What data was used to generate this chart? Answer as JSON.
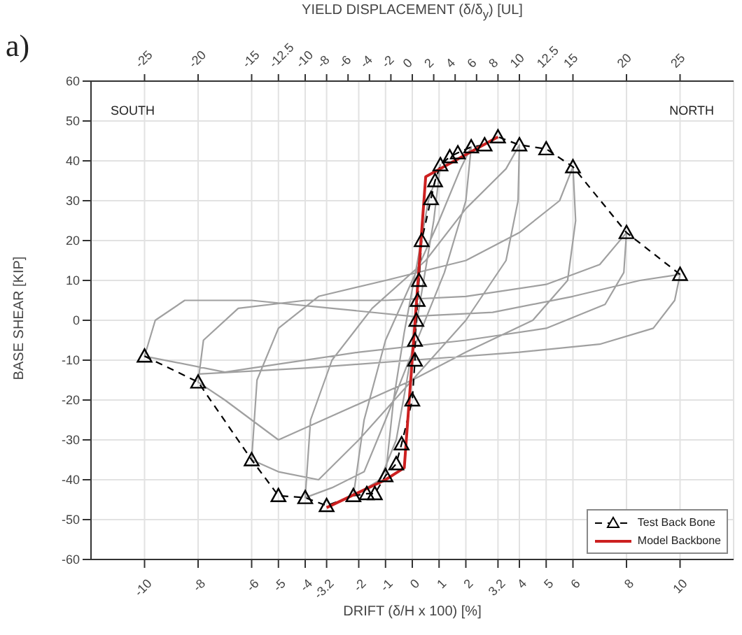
{
  "chart_data": {
    "type": "line",
    "annotations": [
      "a)",
      "SOUTH",
      "NORTH"
    ],
    "xlabel": "DRIFT (δ/H x 100) [%]",
    "x2label": "YIELD DISPLACEMENT (δ/δ$_{y}$) [UL]",
    "ylabel": "BASE SHEAR [KIP]",
    "xlim": [
      -12,
      12
    ],
    "xticks": [
      -10,
      -8,
      -6,
      -5,
      -4,
      -3.2,
      -2,
      -1,
      0,
      1,
      2,
      3.2,
      4,
      5,
      6,
      8,
      10
    ],
    "x2lim": [
      -30,
      30
    ],
    "x2ticks": [
      -25,
      -20,
      -15,
      -12.5,
      -10,
      -8,
      -6,
      -4,
      -2,
      0,
      2,
      4,
      6,
      8,
      10,
      12.5,
      15,
      20,
      25
    ],
    "ylim": [
      -60,
      60
    ],
    "yticks": [
      -60,
      -50,
      -40,
      -30,
      -20,
      -10,
      0,
      10,
      20,
      30,
      40,
      50,
      60
    ],
    "grid": true,
    "legend": "bottom right",
    "series": [
      {
        "color": "#a0a0a0",
        "marker": "none",
        "line_style": "solid",
        "x": [
          -1,
          -0.7,
          -0.3,
          0.2,
          0.6,
          1.05,
          0.8,
          0.3,
          -0.2,
          -0.6,
          -1.2,
          -2.2,
          -1.8,
          -1,
          0,
          1,
          1.8,
          2.2,
          2,
          1.2,
          0,
          -1,
          -1.8,
          -3,
          -4,
          -3.8,
          -3,
          -1.5,
          0.5,
          2,
          3.5,
          4,
          3.95,
          3.5,
          2,
          0,
          -2,
          -3.5,
          -5,
          -6,
          -5.8,
          -5,
          -3.5,
          -1,
          2,
          4,
          5.5,
          6,
          6.1,
          5.8,
          4.5,
          2,
          0,
          -3,
          -5,
          -7,
          -8,
          -7.8,
          -6.5,
          -4,
          -1,
          2,
          5,
          7,
          8,
          7.9,
          7.2,
          5,
          2,
          -2,
          -5,
          -7,
          -10,
          -9.6,
          -8.5,
          -6,
          -3,
          0,
          3,
          6,
          8.5,
          10,
          9.8,
          9,
          7,
          4,
          0,
          -4,
          -8
        ],
        "values": [
          -39,
          -20,
          -3,
          15,
          30,
          39,
          25,
          5,
          -15,
          -30,
          -40,
          -44,
          -25,
          -5,
          10,
          25,
          38,
          43.5,
          30,
          12,
          -8,
          -25,
          -38,
          -42,
          -44.5,
          -25,
          -10,
          3,
          15,
          28,
          38,
          44,
          30,
          15,
          0,
          -15,
          -30,
          -40,
          -38,
          -35,
          -15,
          -2,
          6,
          10,
          15,
          22,
          30,
          38.5,
          25,
          10,
          0,
          -8,
          -15,
          -24,
          -30,
          -20,
          -15.5,
          -5,
          3,
          5,
          5,
          6,
          9,
          14,
          22,
          12,
          4,
          -2,
          -5,
          -8,
          -11,
          -13,
          -9,
          0,
          5,
          5,
          3,
          1,
          2,
          6,
          10,
          11.5,
          5,
          -2,
          -6,
          -8,
          -10,
          -12,
          -13.5
        ]
      },
      {
        "name": "Test Back Bone",
        "color": "#000000",
        "marker": "triangle",
        "line_style": "dashed",
        "x": [
          -10,
          -8,
          -6,
          -5,
          -4,
          -3.2,
          -2.2,
          -1.7,
          -1.4,
          -1,
          -0.6,
          -0.4,
          0,
          0.1,
          0.1,
          0.15,
          0.2,
          0.25,
          0.35,
          0.7,
          0.85,
          1.05,
          1.4,
          1.7,
          2.2,
          2.7,
          3.2,
          4,
          5,
          6,
          8,
          10
        ],
        "values": [
          -9,
          -15.5,
          -35,
          -44,
          -44.5,
          -46.5,
          -44,
          -43.5,
          -43.5,
          -39,
          -36,
          -31,
          -20,
          -10,
          -5,
          0,
          5,
          10,
          20,
          30.5,
          35,
          39,
          41,
          42,
          43.5,
          44,
          46,
          44,
          43,
          38.5,
          22,
          11.5
        ]
      },
      {
        "name": "Model Backbone",
        "color": "#cc2020",
        "marker": "none",
        "line_style": "solid",
        "x": [
          -3.2,
          -1,
          -0.3,
          0.5,
          3.2
        ],
        "values": [
          -47,
          -40,
          -37,
          36,
          46
        ]
      }
    ]
  }
}
